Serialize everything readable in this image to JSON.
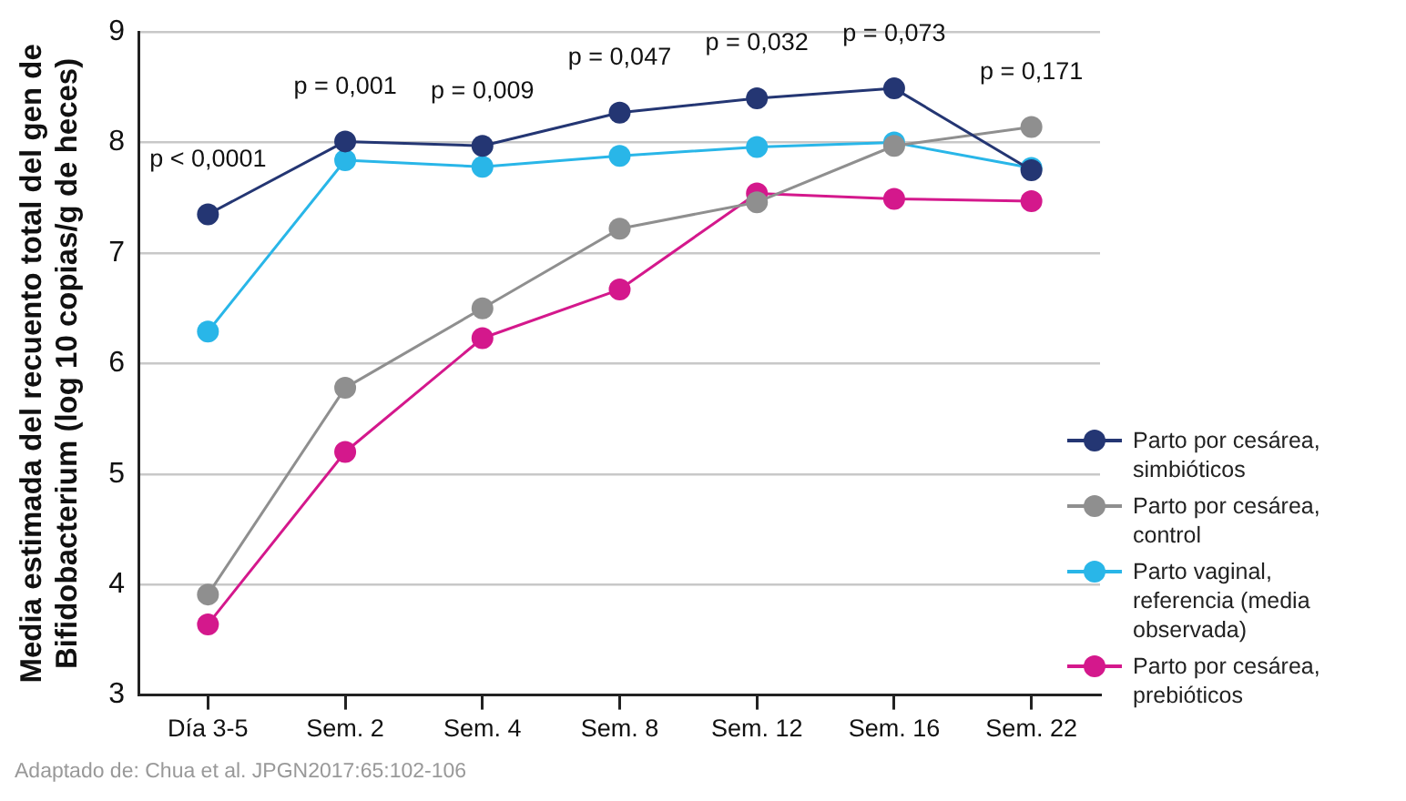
{
  "chart_data": {
    "type": "line",
    "ylabel": "Media estimada del recuento total del gen de\nBifidobacterium (log 10 copias/g de heces)",
    "categories": [
      "Día 3-5",
      "Sem. 2",
      "Sem. 4",
      "Sem. 8",
      "Sem. 12",
      "Sem. 16",
      "Sem. 22"
    ],
    "series": [
      {
        "name": "Parto por cesárea, simbióticos",
        "color": "#243673",
        "values": [
          7.35,
          8.01,
          7.97,
          8.27,
          8.4,
          8.49,
          7.75
        ]
      },
      {
        "name": "Parto por cesárea, control",
        "color": "#8f8f8f",
        "values": [
          3.91,
          5.78,
          6.5,
          7.22,
          7.46,
          7.97,
          8.14
        ]
      },
      {
        "name": "Parto vaginal, referencia (media observada)",
        "color": "#29b6e8",
        "values": [
          6.29,
          7.84,
          7.78,
          7.88,
          7.96,
          8.0,
          7.77
        ]
      },
      {
        "name": "Parto por cesárea, prebióticos",
        "color": "#d4188c",
        "values": [
          3.64,
          5.2,
          6.23,
          6.67,
          7.54,
          7.49,
          7.47
        ]
      }
    ],
    "ylim": [
      3,
      9
    ],
    "yticks": [
      3,
      4,
      5,
      6,
      7,
      8,
      9
    ],
    "grid": "y",
    "legend": "right",
    "marker": "circle",
    "line_style": "solid",
    "annotations": [
      "p < 0,0001",
      "p = 0,001",
      "p = 0,009",
      "p = 0,047",
      "p = 0,032",
      "p = 0,073",
      "p = 0,171",
      "Adaptado de: Chua et al. JPGN2017:65:102-106"
    ]
  }
}
